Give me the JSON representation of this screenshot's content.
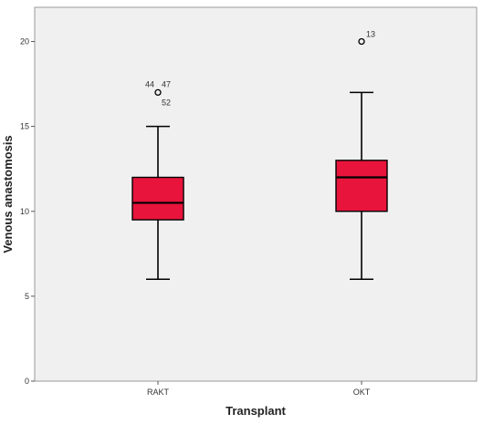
{
  "chart_data": {
    "type": "boxplot",
    "xlabel": "Transplant",
    "ylabel": "Venous anastomosis",
    "ylim": [
      0,
      22
    ],
    "yticks": [
      0,
      5,
      10,
      15,
      20
    ],
    "grid": false,
    "colors": {
      "box_fill": "#e8143c",
      "box_stroke": "#000000",
      "plot_background": "#f0f0f0",
      "page_background": "#ffffff"
    },
    "categories": [
      "RAKT",
      "OKT"
    ],
    "boxes": [
      {
        "category": "RAKT",
        "whisker_low": 6,
        "q1": 9.5,
        "median": 10.5,
        "q3": 12,
        "whisker_high": 15,
        "outliers": [
          {
            "value": 17,
            "labels": [
              "44",
              "47",
              "52"
            ]
          }
        ]
      },
      {
        "category": "OKT",
        "whisker_low": 6,
        "q1": 10,
        "median": 12,
        "q3": 13,
        "whisker_high": 17,
        "outliers": [
          {
            "value": 20,
            "labels": [
              "13"
            ]
          }
        ]
      }
    ]
  }
}
